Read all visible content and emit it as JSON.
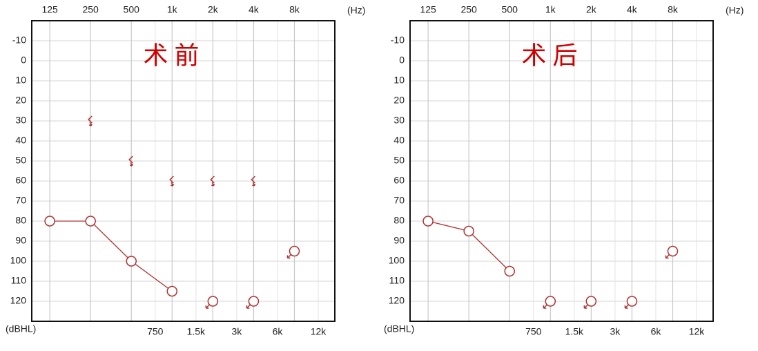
{
  "chart_data": [
    {
      "type": "audiogram",
      "title": "术 前",
      "x_label": "(Hz)",
      "y_label": "(dBHL)",
      "xlim": [
        92,
        15900
      ],
      "log_x": true,
      "ylim": [
        130,
        -20
      ],
      "grid": true,
      "color": "#b03030",
      "xticks": [
        125,
        250,
        500,
        {
          "value": 1000,
          "label": "1k"
        },
        {
          "value": 2000,
          "label": "2k"
        },
        {
          "value": 4000,
          "label": "4k"
        },
        {
          "value": 8000,
          "label": "8k"
        }
      ],
      "xticks_bottom": [
        750,
        {
          "value": 1500,
          "label": "1.5k"
        },
        {
          "value": 3000,
          "label": "3k"
        },
        {
          "value": 6000,
          "label": "6k"
        },
        {
          "value": 12000,
          "label": "12k"
        }
      ],
      "yticks": [
        -10,
        0,
        10,
        20,
        30,
        40,
        50,
        60,
        70,
        80,
        90,
        100,
        110,
        120
      ],
      "series": [
        {
          "marker": "circle",
          "line": true,
          "x": [
            125,
            250,
            500,
            1000
          ],
          "values": [
            80,
            80,
            100,
            115
          ]
        },
        {
          "marker": "circle",
          "no_response": true,
          "x": [
            2000,
            4000,
            8000
          ],
          "values": [
            120,
            120,
            95
          ]
        },
        {
          "marker": "bracket",
          "no_response": true,
          "x": [
            250,
            500,
            1000,
            2000,
            4000
          ],
          "values": [
            30,
            50,
            60,
            60,
            60
          ]
        }
      ]
    },
    {
      "type": "audiogram",
      "title": "术 后",
      "x_label": "(Hz)",
      "y_label": "(dBHL)",
      "xlim": [
        92,
        15900
      ],
      "log_x": true,
      "ylim": [
        130,
        -20
      ],
      "grid": true,
      "color": "#b03030",
      "xticks": [
        125,
        250,
        500,
        {
          "value": 1000,
          "label": "1k"
        },
        {
          "value": 2000,
          "label": "2k"
        },
        {
          "value": 4000,
          "label": "4k"
        },
        {
          "value": 8000,
          "label": "8k"
        }
      ],
      "xticks_bottom": [
        750,
        {
          "value": 1500,
          "label": "1.5k"
        },
        {
          "value": 3000,
          "label": "3k"
        },
        {
          "value": 6000,
          "label": "6k"
        },
        {
          "value": 12000,
          "label": "12k"
        }
      ],
      "yticks": [
        -10,
        0,
        10,
        20,
        30,
        40,
        50,
        60,
        70,
        80,
        90,
        100,
        110,
        120
      ],
      "series": [
        {
          "marker": "circle",
          "line": true,
          "x": [
            125,
            250,
            500
          ],
          "values": [
            80,
            85,
            105
          ]
        },
        {
          "marker": "circle",
          "no_response": true,
          "x": [
            1000,
            2000,
            4000,
            8000
          ],
          "values": [
            120,
            120,
            120,
            95
          ]
        }
      ]
    }
  ]
}
